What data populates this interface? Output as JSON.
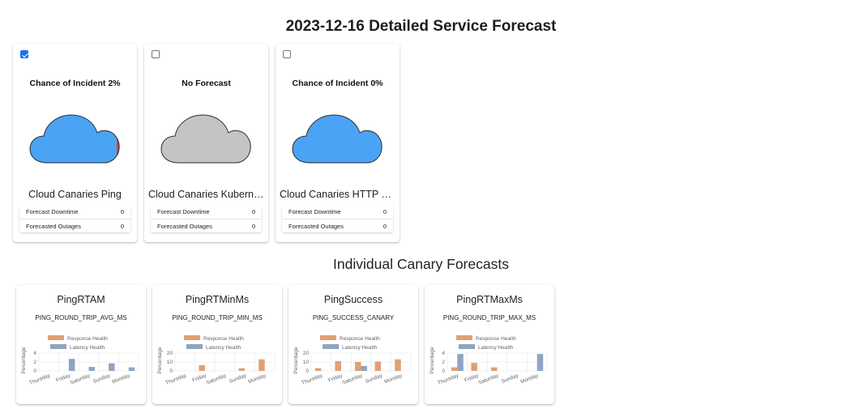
{
  "page_title": "2023-12-16 Detailed Service Forecast",
  "section_title": "Individual Canary Forecasts",
  "colors": {
    "cloud_blue": "#4ba3f5",
    "cloud_gray": "#c4c4c4",
    "incident_red": "#e53935",
    "response_health": "#e0a073",
    "latency_health": "#8ea5c2",
    "checkbox_blue": "#1a73e8"
  },
  "services": [
    {
      "checked": true,
      "headline": "Chance of Incident 2%",
      "cloud": "blue",
      "incident_fraction": 0.02,
      "name": "Cloud Canaries Ping",
      "rows": [
        {
          "label": "Forecast Downtime",
          "value": "0"
        },
        {
          "label": "Forecasted Outages",
          "value": "0"
        }
      ]
    },
    {
      "checked": false,
      "headline": "No Forecast",
      "cloud": "gray",
      "incident_fraction": 0,
      "name": "Cloud Canaries Kubernetes",
      "rows": [
        {
          "label": "Forecast Downtime",
          "value": "0"
        },
        {
          "label": "Forecasted Outages",
          "value": "0"
        }
      ]
    },
    {
      "checked": false,
      "headline": "Chance of Incident 0%",
      "cloud": "blue",
      "incident_fraction": 0,
      "name": "Cloud Canaries HTTP Requests",
      "rows": [
        {
          "label": "Forecast Downtime",
          "value": "0"
        },
        {
          "label": "Forecasted Outages",
          "value": "0"
        }
      ]
    }
  ],
  "canaries": [
    {
      "name": "PingRTAM",
      "code": "PING_ROUND_TRIP_AVG_MS"
    },
    {
      "name": "PingRTMinMs",
      "code": "PING_ROUND_TRIP_MIN_MS"
    },
    {
      "name": "PingSuccess",
      "code": "PING_SUCCESS_CANARY"
    },
    {
      "name": "PingRTMaxMs",
      "code": "PING_ROUND_TRIP_MAX_MS"
    }
  ],
  "chart_data": [
    {
      "type": "bar",
      "ylabel": "Percentage",
      "categories": [
        "Thursday",
        "Friday",
        "Saturday",
        "Sunday",
        "Monday"
      ],
      "yticks": [
        0,
        2,
        4
      ],
      "ylim": [
        0,
        4
      ],
      "grid": true,
      "legend_position": "top",
      "series": [
        {
          "name": "Response Health",
          "values": [
            0,
            0,
            0,
            0,
            0
          ]
        },
        {
          "name": "Latency Health",
          "values": [
            0,
            2.7,
            0.9,
            1.7,
            0.8
          ]
        }
      ]
    },
    {
      "type": "bar",
      "ylabel": "Percentage",
      "categories": [
        "Thursday",
        "Friday",
        "Saturday",
        "Sunday",
        "Monday"
      ],
      "yticks": [
        0,
        10,
        20
      ],
      "ylim": [
        0,
        20
      ],
      "grid": true,
      "legend_position": "top",
      "series": [
        {
          "name": "Response Health",
          "values": [
            0,
            6.5,
            0,
            3,
            13
          ]
        },
        {
          "name": "Latency Health",
          "values": [
            0,
            0,
            0,
            0,
            0
          ]
        }
      ]
    },
    {
      "type": "bar",
      "ylabel": "Percentage",
      "categories": [
        "Thursday",
        "Friday",
        "Saturday",
        "Sunday",
        "Monday"
      ],
      "yticks": [
        0,
        10,
        20
      ],
      "ylim": [
        0,
        20
      ],
      "grid": true,
      "legend_position": "top",
      "series": [
        {
          "name": "Response Health",
          "values": [
            3,
            11,
            10,
            10.5,
            13
          ]
        },
        {
          "name": "Latency Health",
          "values": [
            0,
            0,
            5.5,
            0,
            0
          ]
        }
      ]
    },
    {
      "type": "bar",
      "ylabel": "Percentage",
      "categories": [
        "Thursday",
        "Friday",
        "Saturday",
        "Sunday",
        "Monday"
      ],
      "yticks": [
        0,
        2,
        4
      ],
      "ylim": [
        0,
        4
      ],
      "grid": true,
      "legend_position": "top",
      "series": [
        {
          "name": "Response Health",
          "values": [
            0.8,
            1.8,
            0.8,
            0,
            0
          ]
        },
        {
          "name": "Latency Health",
          "values": [
            3.8,
            0,
            0,
            0,
            3.8
          ]
        }
      ]
    }
  ]
}
